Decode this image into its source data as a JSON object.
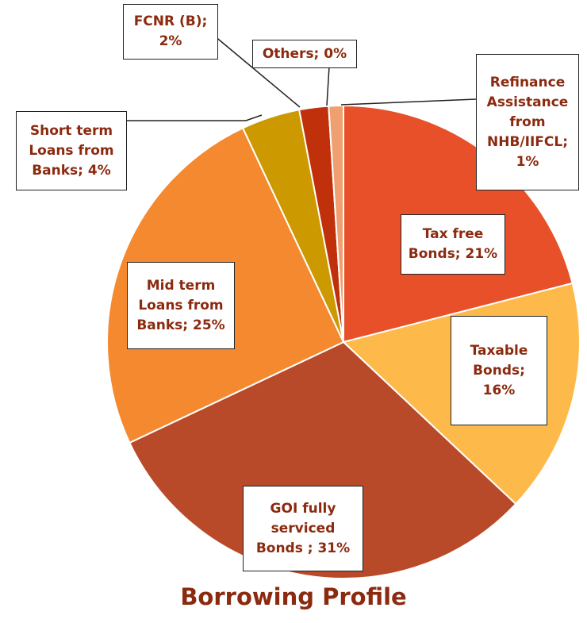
{
  "chart_data": {
    "type": "pie",
    "title": "Borrowing Profile",
    "categories": [
      "Tax free Bonds; 21%",
      "Taxable Bonds; 16%",
      "GOI fully serviced Bonds ; 31%",
      "Mid term Loans from Banks; 25%",
      "Short term Loans from Banks; 4%",
      "FCNR (B); 2%",
      "Others; 0%",
      "Refinance Assistance from NHB/IIFCL; 1%"
    ],
    "values": [
      21,
      16,
      31,
      25,
      4,
      2,
      0,
      1
    ],
    "colors": [
      "#e8502a",
      "#fdb94a",
      "#b94a29",
      "#f5892f",
      "#cc9900",
      "#c0300b",
      "#8b3a1a",
      "#f0a070"
    ]
  }
}
